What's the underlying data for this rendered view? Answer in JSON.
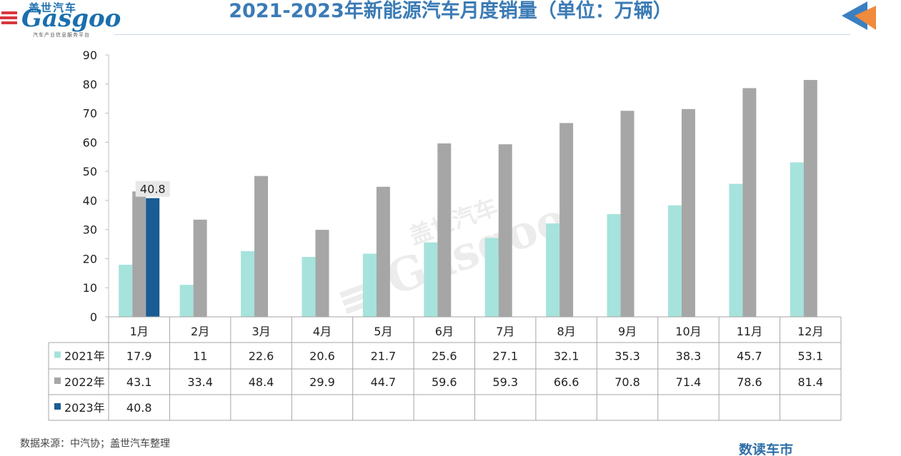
{
  "header": {
    "title": "2021-2023年新能源汽车月度销量（单位：万辆）",
    "logo_cn": "盖世汽车",
    "logo_en": "Gasgoo",
    "logo_sub": "汽车产业信息服务平台"
  },
  "footer": {
    "source": "数据来源：中汽协；盖世汽车整理",
    "brand": "数读车市"
  },
  "colors": {
    "s2021": "#a6e3dc",
    "s2022": "#a6a6a6",
    "s2023": "#1a5c93",
    "title": "#3b7bb5",
    "nav_blue": "#3a7fc1",
    "nav_orange": "#f08a3c"
  },
  "icons": {
    "nav": "back-arrow-icon",
    "logo": "gasgoo-logo-icon"
  },
  "chart_data": {
    "type": "bar",
    "categories": [
      "1月",
      "2月",
      "3月",
      "4月",
      "5月",
      "6月",
      "7月",
      "8月",
      "9月",
      "10月",
      "11月",
      "12月"
    ],
    "series": [
      {
        "name": "2021年",
        "values": [
          17.9,
          11,
          22.6,
          20.6,
          21.7,
          25.6,
          27.1,
          32.1,
          35.3,
          38.3,
          45.7,
          53.1
        ]
      },
      {
        "name": "2022年",
        "values": [
          43.1,
          33.4,
          48.4,
          29.9,
          44.7,
          59.6,
          59.3,
          66.6,
          70.8,
          71.4,
          78.6,
          81.4
        ]
      },
      {
        "name": "2023年",
        "values": [
          40.8,
          null,
          null,
          null,
          null,
          null,
          null,
          null,
          null,
          null,
          null,
          null
        ]
      }
    ],
    "ylim": [
      0,
      90
    ],
    "yticks": [
      0,
      10,
      20,
      30,
      40,
      50,
      60,
      70,
      80,
      90
    ],
    "data_labels": [
      {
        "series": "2023年",
        "category": "1月",
        "text": "40.8"
      }
    ],
    "legend": "data-table",
    "grid": false,
    "title": "2021-2023年新能源汽车月度销量（单位：万辆）"
  }
}
